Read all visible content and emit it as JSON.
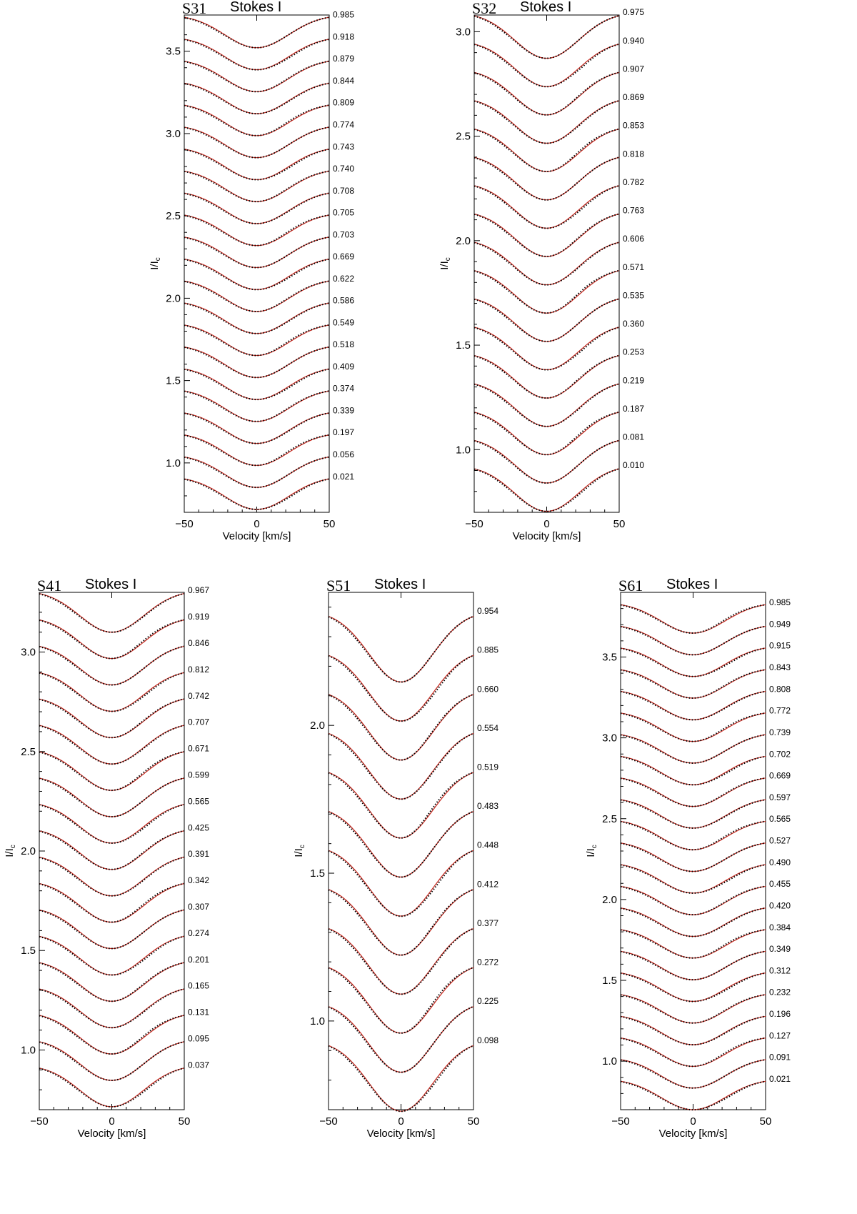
{
  "figure_title": "Stokes I profiles",
  "colors": {
    "model": "#c8281e",
    "observed": "#000000",
    "axes": "#000000"
  },
  "chart_data": [
    {
      "type": "line",
      "label": "S31",
      "title": "Stokes I",
      "xlabel": "Velocity [km/s]",
      "ylabel": "I/I",
      "ylabel_sub": "c",
      "xlim": [
        -50,
        50
      ],
      "ylim": [
        0.7,
        3.72
      ],
      "xticks": [
        -50,
        0,
        50
      ],
      "xtick_labels": [
        "−50",
        "0",
        "50"
      ],
      "yticks": [
        1.0,
        1.5,
        2.0,
        2.5,
        3.0,
        3.5
      ],
      "ytick_labels": [
        "1.0",
        "1.5",
        "2.0",
        "2.5",
        "3.0",
        "3.5"
      ],
      "first_continuum": 0.918,
      "offset_step": 0.1335,
      "depth": 0.2,
      "phases": [
        "0.021",
        "0.056",
        "0.197",
        "0.339",
        "0.374",
        "0.409",
        "0.518",
        "0.549",
        "0.586",
        "0.622",
        "0.669",
        "0.703",
        "0.705",
        "0.708",
        "0.740",
        "0.743",
        "0.774",
        "0.809",
        "0.844",
        "0.879",
        "0.918",
        "0.985"
      ]
    },
    {
      "type": "line",
      "label": "S32",
      "title": "Stokes I",
      "xlabel": "Velocity [km/s]",
      "ylabel": "I/I",
      "ylabel_sub": "c",
      "xlim": [
        -50,
        50
      ],
      "ylim": [
        0.7,
        3.08
      ],
      "xticks": [
        -50,
        0,
        50
      ],
      "xtick_labels": [
        "−50",
        "0",
        "50"
      ],
      "yticks": [
        1.0,
        1.5,
        2.0,
        2.5,
        3.0
      ],
      "ytick_labels": [
        "1.0",
        "1.5",
        "2.0",
        "2.5",
        "3.0"
      ],
      "first_continuum": 0.925,
      "offset_step": 0.1355,
      "depth": 0.22,
      "phases": [
        "0.010",
        "0.081",
        "0.187",
        "0.219",
        "0.253",
        "0.360",
        "0.535",
        "0.571",
        "0.606",
        "0.763",
        "0.782",
        "0.818",
        "0.853",
        "0.869",
        "0.907",
        "0.940",
        "0.975"
      ]
    },
    {
      "type": "line",
      "label": "S41",
      "title": "Stokes I",
      "xlabel": "Velocity [km/s]",
      "ylabel": "I/I",
      "ylabel_sub": "c",
      "xlim": [
        -50,
        50
      ],
      "ylim": [
        0.7,
        3.3
      ],
      "xticks": [
        -50,
        0,
        50
      ],
      "xtick_labels": [
        "−50",
        "0",
        "50"
      ],
      "yticks": [
        1.0,
        1.5,
        2.0,
        2.5,
        3.0
      ],
      "ytick_labels": [
        "1.0",
        "1.5",
        "2.0",
        "2.5",
        "3.0"
      ],
      "first_continuum": 0.925,
      "offset_step": 0.1325,
      "depth": 0.21,
      "phases": [
        "0.037",
        "0.095",
        "0.131",
        "0.165",
        "0.201",
        "0.274",
        "0.307",
        "0.342",
        "0.391",
        "0.425",
        "0.565",
        "0.599",
        "0.671",
        "0.707",
        "0.742",
        "0.812",
        "0.846",
        "0.919",
        "0.967"
      ]
    },
    {
      "type": "line",
      "label": "S51",
      "title": "Stokes I",
      "xlabel": "Velocity [km/s]",
      "ylabel": "I/I",
      "ylabel_sub": "c",
      "xlim": [
        -50,
        50
      ],
      "ylim": [
        0.7,
        2.45
      ],
      "xticks": [
        -50,
        0,
        50
      ],
      "xtick_labels": [
        "−50",
        "0",
        "50"
      ],
      "yticks": [
        1.0,
        1.5,
        2.0
      ],
      "ytick_labels": [
        "1.0",
        "1.5",
        "2.0"
      ],
      "first_continuum": 0.935,
      "offset_step": 0.132,
      "depth": 0.24,
      "phases": [
        "0.098",
        "0.225",
        "0.272",
        "0.377",
        "0.412",
        "0.448",
        "0.483",
        "0.519",
        "0.554",
        "0.660",
        "0.885",
        "0.954"
      ]
    },
    {
      "type": "line",
      "label": "S61",
      "title": "Stokes I",
      "xlabel": "Velocity [km/s]",
      "ylabel": "I/I",
      "ylabel_sub": "c",
      "xlim": [
        -50,
        50
      ],
      "ylim": [
        0.7,
        3.9
      ],
      "xticks": [
        -50,
        0,
        50
      ],
      "xtick_labels": [
        "−50",
        "0",
        "50"
      ],
      "yticks": [
        1.0,
        1.5,
        2.0,
        2.5,
        3.0,
        3.5
      ],
      "ytick_labels": [
        "1.0",
        "1.5",
        "2.0",
        "2.5",
        "3.0",
        "3.5"
      ],
      "first_continuum": 0.89,
      "offset_step": 0.134,
      "depth": 0.19,
      "phases": [
        "0.021",
        "0.091",
        "0.127",
        "0.196",
        "0.232",
        "0.312",
        "0.349",
        "0.384",
        "0.420",
        "0.455",
        "0.490",
        "0.527",
        "0.565",
        "0.597",
        "0.669",
        "0.702",
        "0.739",
        "0.772",
        "0.808",
        "0.843",
        "0.915",
        "0.949",
        "0.985"
      ]
    }
  ]
}
